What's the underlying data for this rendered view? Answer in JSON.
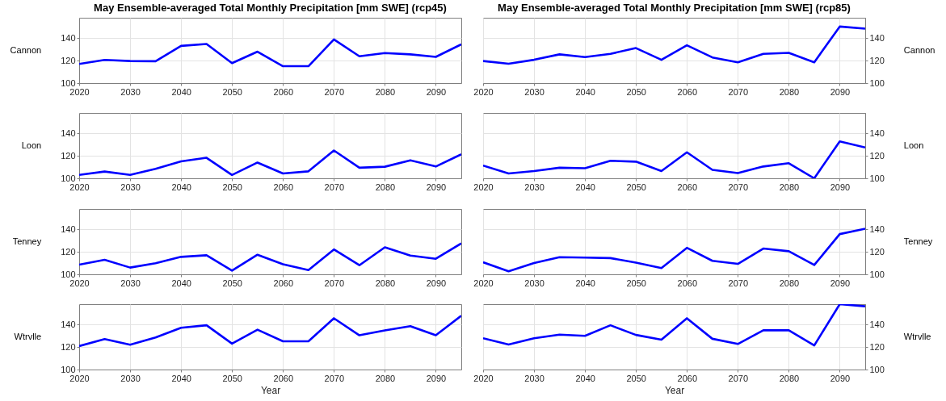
{
  "chart_data": [
    {
      "type": "line",
      "title": "May Ensemble-averaged Total Monthly Precipitation [mm SWE] (rcp45)",
      "ylabel": "Cannon",
      "x": [
        2020,
        2025,
        2030,
        2035,
        2040,
        2045,
        2050,
        2055,
        2060,
        2065,
        2070,
        2075,
        2080,
        2085,
        2090,
        2095
      ],
      "xlim": [
        2020,
        2095
      ],
      "xticks": [
        2020,
        2030,
        2040,
        2050,
        2060,
        2070,
        2080,
        2090
      ],
      "ylim": [
        100,
        158
      ],
      "yticks": [
        100,
        120,
        140
      ],
      "grid": true,
      "series": [
        {
          "color": "#0000ff",
          "values": [
            117,
            120.6,
            119.6,
            119.4,
            133,
            134.7,
            117.7,
            127.9,
            115,
            115,
            138.8,
            123.8,
            126.7,
            125.5,
            123.3,
            134.4
          ]
        }
      ]
    },
    {
      "type": "line",
      "title": "May Ensemble-averaged Total Monthly Precipitation [mm SWE] (rcp85)",
      "y2label": "Cannon",
      "x": [
        2020,
        2025,
        2030,
        2035,
        2040,
        2045,
        2050,
        2055,
        2060,
        2065,
        2070,
        2075,
        2080,
        2085,
        2090,
        2095
      ],
      "xlim": [
        2020,
        2095
      ],
      "xticks": [
        2020,
        2030,
        2040,
        2050,
        2060,
        2070,
        2080,
        2090
      ],
      "y2lim": [
        100,
        158
      ],
      "y2ticks": [
        100,
        120,
        140
      ],
      "grid": true,
      "series": [
        {
          "color": "#0000ff",
          "axis": "y2",
          "values": [
            119.6,
            117.2,
            120.7,
            125.5,
            123.1,
            126,
            131.1,
            120.7,
            133.6,
            122.8,
            118.5,
            126,
            126.8,
            118.5,
            150.2,
            148.3
          ]
        }
      ]
    },
    {
      "type": "line",
      "ylabel": "Loon",
      "x": [
        2020,
        2025,
        2030,
        2035,
        2040,
        2045,
        2050,
        2055,
        2060,
        2065,
        2070,
        2075,
        2080,
        2085,
        2090,
        2095
      ],
      "xlim": [
        2020,
        2095
      ],
      "xticks": [
        2020,
        2030,
        2040,
        2050,
        2060,
        2070,
        2080,
        2090
      ],
      "ylim": [
        100,
        158
      ],
      "yticks": [
        100,
        120,
        140
      ],
      "grid": true,
      "series": [
        {
          "color": "#0000ff",
          "values": [
            103,
            106,
            103,
            108.4,
            115,
            118.2,
            103,
            114,
            104.3,
            106.2,
            124.7,
            109.4,
            110.3,
            116,
            110.5,
            121.3
          ]
        }
      ]
    },
    {
      "type": "line",
      "y2label": "Loon",
      "x": [
        2020,
        2025,
        2030,
        2035,
        2040,
        2045,
        2050,
        2055,
        2060,
        2065,
        2070,
        2075,
        2080,
        2085,
        2090,
        2095
      ],
      "xlim": [
        2020,
        2095
      ],
      "xticks": [
        2020,
        2030,
        2040,
        2050,
        2060,
        2070,
        2080,
        2090
      ],
      "y2lim": [
        100,
        158
      ],
      "y2ticks": [
        100,
        120,
        140
      ],
      "grid": true,
      "series": [
        {
          "color": "#0000ff",
          "axis": "y2",
          "values": [
            111.3,
            104.3,
            106.4,
            109.4,
            108.9,
            115.6,
            114.8,
            106.4,
            123.1,
            107.5,
            104.6,
            110.5,
            113.4,
            100,
            132.8,
            127.4
          ]
        }
      ]
    },
    {
      "type": "line",
      "ylabel": "Tenney",
      "x": [
        2020,
        2025,
        2030,
        2035,
        2040,
        2045,
        2050,
        2055,
        2060,
        2065,
        2070,
        2075,
        2080,
        2085,
        2090,
        2095
      ],
      "xlim": [
        2020,
        2095
      ],
      "xticks": [
        2020,
        2030,
        2040,
        2050,
        2060,
        2070,
        2080,
        2090
      ],
      "ylim": [
        100,
        158
      ],
      "yticks": [
        100,
        120,
        140
      ],
      "grid": true,
      "series": [
        {
          "color": "#0000ff",
          "values": [
            108.6,
            112.9,
            106,
            109.8,
            115.5,
            116.9,
            103.3,
            117.4,
            109,
            103.8,
            122.1,
            108.1,
            124,
            116.7,
            113.8,
            127.4
          ]
        }
      ]
    },
    {
      "type": "line",
      "y2label": "Tenney",
      "x": [
        2020,
        2025,
        2030,
        2035,
        2040,
        2045,
        2050,
        2055,
        2060,
        2065,
        2070,
        2075,
        2080,
        2085,
        2090,
        2095
      ],
      "xlim": [
        2020,
        2095
      ],
      "xticks": [
        2020,
        2030,
        2040,
        2050,
        2060,
        2070,
        2080,
        2090
      ],
      "y2lim": [
        100,
        158
      ],
      "y2ticks": [
        100,
        120,
        140
      ],
      "grid": true,
      "series": [
        {
          "color": "#0000ff",
          "axis": "y2",
          "values": [
            110.7,
            102.7,
            110.1,
            115.2,
            114.9,
            114.4,
            110.4,
            105.6,
            123.5,
            112,
            109.3,
            122.9,
            120.5,
            108.3,
            135.7,
            140.5
          ]
        }
      ]
    },
    {
      "type": "line",
      "xlabel": "Year",
      "ylabel": "Wtrvlle",
      "x": [
        2020,
        2025,
        2030,
        2035,
        2040,
        2045,
        2050,
        2055,
        2060,
        2065,
        2070,
        2075,
        2080,
        2085,
        2090,
        2095
      ],
      "xlim": [
        2020,
        2095
      ],
      "xticks": [
        2020,
        2030,
        2040,
        2050,
        2060,
        2070,
        2080,
        2090
      ],
      "ylim": [
        100,
        158
      ],
      "yticks": [
        100,
        120,
        140
      ],
      "grid": true,
      "series": [
        {
          "color": "#0000ff",
          "values": [
            120.8,
            127,
            122,
            128.5,
            137.1,
            139.3,
            123,
            135.4,
            125.1,
            125.1,
            145.5,
            130.4,
            134.7,
            138.5,
            130.4,
            147.7
          ]
        }
      ]
    },
    {
      "type": "line",
      "xlabel": "Year",
      "y2label": "Wtrvlle",
      "x": [
        2020,
        2025,
        2030,
        2035,
        2040,
        2045,
        2050,
        2055,
        2060,
        2065,
        2070,
        2075,
        2080,
        2085,
        2090,
        2095
      ],
      "xlim": [
        2020,
        2095
      ],
      "xticks": [
        2020,
        2030,
        2040,
        2050,
        2060,
        2070,
        2080,
        2090
      ],
      "y2lim": [
        100,
        158
      ],
      "y2ticks": [
        100,
        120,
        140
      ],
      "grid": true,
      "series": [
        {
          "color": "#0000ff",
          "axis": "y2",
          "values": [
            127.8,
            122.2,
            127.8,
            131,
            129.9,
            139.3,
            130.7,
            126.5,
            145.5,
            127.3,
            122.7,
            134.8,
            134.8,
            121.4,
            158,
            156.1
          ]
        }
      ]
    }
  ]
}
